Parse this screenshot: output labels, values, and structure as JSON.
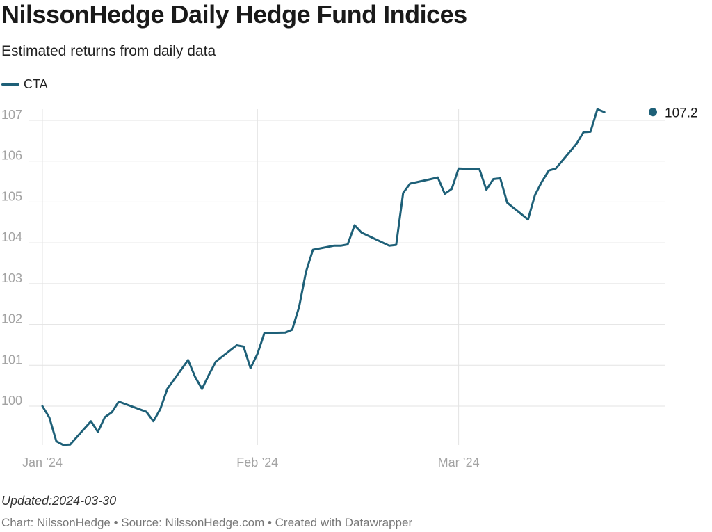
{
  "chart_data": {
    "type": "line",
    "title": "NilssonHedge Daily Hedge Fund Indices",
    "subtitle": "Estimated returns from daily data",
    "xlabel": "",
    "ylabel": "",
    "x_ticks": [
      "Jan ’24",
      "Feb ’24",
      "Mar ’24"
    ],
    "y_ticks": [
      "100",
      "101",
      "102",
      "103",
      "104",
      "105",
      "106",
      "107"
    ],
    "xlim": [
      "2024-01-01",
      "2024-03-29"
    ],
    "ylim": [
      99.2,
      107.3
    ],
    "grid": true,
    "legend_position": "top-left",
    "end_label": "107.2",
    "colors": {
      "line": "#1e6078",
      "grid": "#e3e3e3",
      "tick_text": "#a3a3a3"
    },
    "series": [
      {
        "name": "CTA",
        "x": [
          "2024-01-01",
          "2024-01-02",
          "2024-01-03",
          "2024-01-04",
          "2024-01-05",
          "2024-01-08",
          "2024-01-09",
          "2024-01-10",
          "2024-01-11",
          "2024-01-12",
          "2024-01-16",
          "2024-01-17",
          "2024-01-18",
          "2024-01-19",
          "2024-01-22",
          "2024-01-23",
          "2024-01-24",
          "2024-01-25",
          "2024-01-26",
          "2024-01-29",
          "2024-01-30",
          "2024-01-31",
          "2024-02-01",
          "2024-02-02",
          "2024-02-05",
          "2024-02-06",
          "2024-02-07",
          "2024-02-08",
          "2024-02-09",
          "2024-02-12",
          "2024-02-13",
          "2024-02-14",
          "2024-02-15",
          "2024-02-16",
          "2024-02-20",
          "2024-02-21",
          "2024-02-22",
          "2024-02-23",
          "2024-02-26",
          "2024-02-27",
          "2024-02-28",
          "2024-02-29",
          "2024-03-01",
          "2024-03-04",
          "2024-03-05",
          "2024-03-06",
          "2024-03-07",
          "2024-03-08",
          "2024-03-11",
          "2024-03-12",
          "2024-03-13",
          "2024-03-14",
          "2024-03-15",
          "2024-03-18",
          "2024-03-19",
          "2024-03-20",
          "2024-03-21",
          "2024-03-22",
          "2024-03-25",
          "2024-03-26",
          "2024-03-27",
          "2024-03-28"
        ],
        "values": [
          100.0,
          99.72,
          99.14,
          99.05,
          99.06,
          99.63,
          99.37,
          99.73,
          99.85,
          100.11,
          99.86,
          99.63,
          99.93,
          100.42,
          101.13,
          100.72,
          100.42,
          100.77,
          101.09,
          101.49,
          101.46,
          100.93,
          101.28,
          101.79,
          101.8,
          101.87,
          102.43,
          103.29,
          103.83,
          103.93,
          103.93,
          103.96,
          104.43,
          104.25,
          103.93,
          103.95,
          105.22,
          105.45,
          105.56,
          105.6,
          105.2,
          105.32,
          105.82,
          105.8,
          105.3,
          105.56,
          105.58,
          104.98,
          104.57,
          105.17,
          105.5,
          105.77,
          105.82,
          106.43,
          106.71,
          106.72,
          107.27,
          107.2,
          107.2,
          107.2,
          107.2,
          107.2
        ]
      }
    ]
  },
  "footer": {
    "updated": "Updated:2024-03-30",
    "credits": "Chart: NilssonHedge • Source: NilssonHedge.com • Created with Datawrapper"
  }
}
